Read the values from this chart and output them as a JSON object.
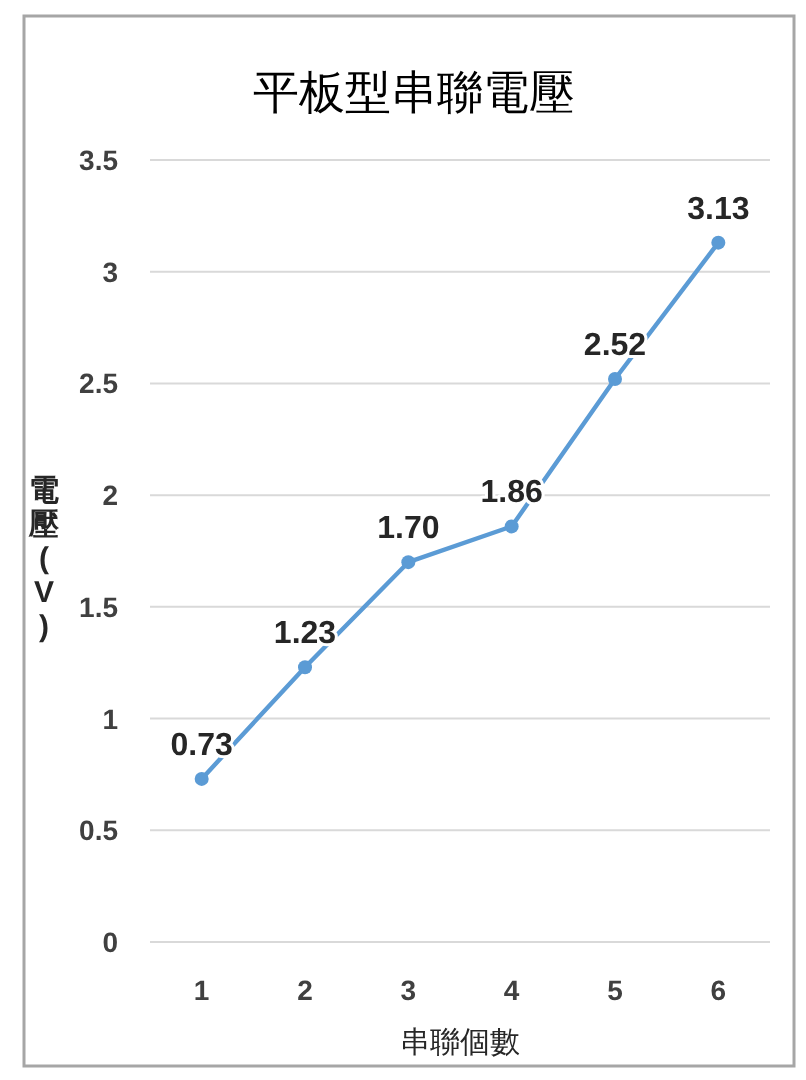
{
  "chart_data": {
    "type": "line",
    "title": "平板型串聯電壓",
    "xlabel": "串聯個數",
    "ylabel": "電壓(V)",
    "categories": [
      "1",
      "2",
      "3",
      "4",
      "5",
      "6"
    ],
    "series": [
      {
        "color": "#5b9bd5",
        "values": [
          0.73,
          1.23,
          1.7,
          1.86,
          2.52,
          3.13
        ],
        "value_labels": [
          "0.73",
          "1.23",
          "1.70",
          "1.86",
          "2.52",
          "3.13"
        ]
      }
    ],
    "ylim": [
      0,
      3.5
    ],
    "yticks": [
      0,
      0.5,
      1,
      1.5,
      2,
      2.5,
      3,
      3.5
    ],
    "grid": "y",
    "marker": "circle",
    "line_style": "solid"
  }
}
